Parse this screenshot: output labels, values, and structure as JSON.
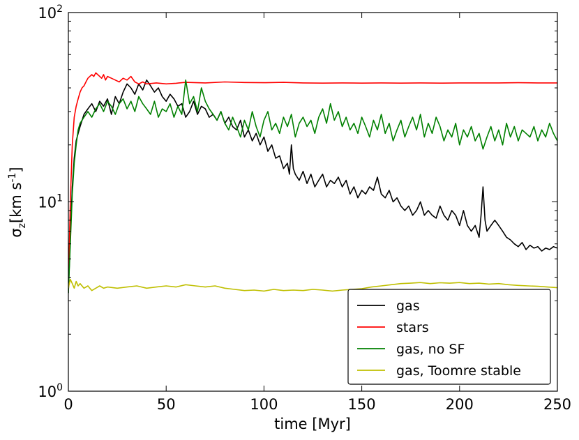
{
  "chart_data": {
    "type": "line",
    "xlabel": "time [Myr]",
    "ylabel": "σ_z [km s^-1]",
    "ylabel_parts": {
      "sigma": "σ",
      "sub": "z",
      "unit_open": "[km s",
      "sup": "-1",
      "unit_close": "]"
    },
    "xlim": [
      0,
      250
    ],
    "ylim": [
      1,
      100
    ],
    "y_scale": "log",
    "x_ticks": [
      {
        "value": 0,
        "label": "0"
      },
      {
        "value": 50,
        "label": "50"
      },
      {
        "value": 100,
        "label": "100"
      },
      {
        "value": 150,
        "label": "150"
      },
      {
        "value": 200,
        "label": "200"
      },
      {
        "value": 250,
        "label": "250"
      }
    ],
    "y_ticks": [
      {
        "value": 1,
        "base": "10",
        "exp": "0"
      },
      {
        "value": 10,
        "base": "10",
        "exp": "1"
      },
      {
        "value": 100,
        "base": "10",
        "exp": "2"
      }
    ],
    "grid": false,
    "legend_position": "bottom-right",
    "series": [
      {
        "name": "gas",
        "color": "#000000",
        "x": [
          0,
          1,
          2,
          3,
          4,
          5,
          6,
          8,
          10,
          12,
          14,
          16,
          18,
          20,
          22,
          24,
          26,
          28,
          30,
          32,
          34,
          36,
          38,
          40,
          42,
          44,
          46,
          48,
          50,
          52,
          54,
          56,
          58,
          60,
          62,
          64,
          66,
          68,
          70,
          72,
          74,
          76,
          78,
          80,
          82,
          84,
          86,
          88,
          90,
          92,
          94,
          96,
          98,
          100,
          102,
          104,
          106,
          108,
          110,
          112,
          113,
          114,
          115,
          116,
          118,
          120,
          122,
          124,
          126,
          128,
          130,
          132,
          134,
          136,
          138,
          140,
          142,
          144,
          146,
          148,
          150,
          152,
          154,
          156,
          158,
          160,
          162,
          164,
          166,
          168,
          170,
          172,
          174,
          176,
          178,
          180,
          182,
          184,
          186,
          188,
          190,
          192,
          194,
          196,
          198,
          200,
          202,
          204,
          206,
          208,
          210,
          211,
          212,
          213,
          214,
          216,
          218,
          220,
          222,
          224,
          226,
          228,
          230,
          232,
          234,
          236,
          238,
          240,
          242,
          244,
          246,
          248,
          250
        ],
        "y": [
          3.3,
          6.5,
          12,
          17,
          21,
          23,
          25,
          29,
          31,
          33,
          30,
          34,
          32,
          35,
          29,
          36,
          33,
          38,
          42,
          40,
          37,
          42,
          39,
          44,
          41,
          38,
          40,
          36,
          34,
          37,
          35,
          32,
          33,
          28,
          30,
          34,
          29,
          32,
          31,
          28,
          29,
          27,
          30,
          26,
          28,
          25,
          24,
          27,
          22,
          24,
          21,
          23,
          20,
          22,
          18.5,
          20,
          17,
          17.5,
          15,
          16,
          14,
          20,
          15,
          14,
          13,
          14.5,
          12.5,
          14,
          12,
          13,
          14,
          12,
          13,
          12.5,
          13.5,
          12,
          13,
          11,
          12,
          10.5,
          11.5,
          11,
          12,
          11.5,
          13.5,
          11,
          10.5,
          11.5,
          10,
          10.5,
          9.5,
          9,
          9.5,
          8.5,
          9,
          10,
          8.5,
          9,
          8.5,
          8.2,
          9.5,
          8.5,
          8,
          9,
          8.5,
          7.5,
          9,
          7.5,
          7,
          7.5,
          6.5,
          8.5,
          12,
          8,
          7,
          7.5,
          8,
          7.5,
          7,
          6.5,
          6.3,
          6,
          5.8,
          6.1,
          5.6,
          5.9,
          5.7,
          5.8,
          5.5,
          5.7,
          5.6,
          5.8,
          5.7
        ]
      },
      {
        "name": "stars",
        "color": "#ff0000",
        "x": [
          0,
          1,
          2,
          3,
          4,
          5,
          6,
          7,
          8,
          9,
          10,
          11,
          12,
          13,
          14,
          15,
          16,
          17,
          18,
          19,
          20,
          22,
          24,
          26,
          28,
          30,
          32,
          34,
          36,
          38,
          40,
          45,
          50,
          55,
          60,
          70,
          80,
          90,
          100,
          110,
          120,
          130,
          140,
          150,
          160,
          170,
          180,
          190,
          200,
          210,
          220,
          230,
          240,
          250
        ],
        "y": [
          3.5,
          10,
          20,
          28,
          32,
          35,
          38,
          40,
          41,
          43,
          45,
          46,
          47,
          46,
          48,
          47,
          46,
          45,
          47,
          44,
          46,
          45,
          44,
          43,
          45,
          44,
          46,
          43,
          42,
          43,
          42,
          42.5,
          42,
          42.3,
          42.8,
          42.5,
          43,
          42.7,
          42.6,
          42.8,
          42.5,
          42.4,
          42.5,
          42.4,
          42.5,
          42.4,
          42.5,
          42.4,
          42.5,
          42.5,
          42.5,
          42.6,
          42.5,
          42.5
        ]
      },
      {
        "name": "gas, no SF",
        "color": "#008000",
        "x": [
          0,
          1,
          2,
          3,
          4,
          5,
          6,
          8,
          10,
          12,
          14,
          16,
          18,
          20,
          22,
          24,
          26,
          28,
          30,
          32,
          34,
          36,
          38,
          40,
          42,
          44,
          46,
          48,
          50,
          52,
          54,
          56,
          58,
          60,
          62,
          64,
          66,
          68,
          70,
          72,
          74,
          76,
          78,
          80,
          82,
          84,
          86,
          88,
          90,
          92,
          94,
          96,
          98,
          100,
          102,
          104,
          106,
          108,
          110,
          112,
          114,
          116,
          118,
          120,
          122,
          124,
          126,
          128,
          130,
          132,
          134,
          136,
          138,
          140,
          142,
          144,
          146,
          148,
          150,
          152,
          154,
          156,
          158,
          160,
          162,
          164,
          166,
          168,
          170,
          172,
          174,
          176,
          178,
          180,
          182,
          184,
          186,
          188,
          190,
          192,
          194,
          196,
          198,
          200,
          202,
          204,
          206,
          208,
          210,
          212,
          214,
          216,
          218,
          220,
          222,
          224,
          226,
          228,
          230,
          232,
          234,
          236,
          238,
          240,
          242,
          244,
          246,
          248,
          250
        ],
        "y": [
          3.3,
          6,
          11,
          16,
          20,
          24,
          26,
          28,
          30,
          28,
          31,
          33,
          30,
          34,
          32,
          29,
          33,
          35,
          31,
          34,
          30,
          36,
          33,
          31,
          29,
          34,
          28,
          31,
          30,
          33,
          28,
          32,
          29,
          44,
          33,
          36,
          30,
          40,
          34,
          31,
          29,
          27,
          30,
          26,
          24,
          28,
          25,
          22,
          27,
          24,
          30,
          25,
          22,
          27,
          30,
          24,
          26,
          23,
          28,
          25,
          29,
          22,
          26,
          28,
          25,
          27,
          23,
          28,
          31,
          26,
          33,
          27,
          30,
          25,
          28,
          24,
          26,
          23,
          28,
          25,
          22,
          27,
          24,
          29,
          23,
          26,
          21,
          24,
          27,
          22,
          25,
          28,
          24,
          29,
          22,
          26,
          23,
          28,
          25,
          21,
          24,
          22,
          26,
          20,
          24,
          22,
          25,
          21,
          23,
          19,
          22,
          25,
          21,
          24,
          20,
          26,
          22,
          25,
          21,
          24,
          23,
          22,
          25,
          21,
          24,
          22,
          26,
          23,
          21
        ]
      },
      {
        "name": "gas, Toomre stable",
        "color": "#bfbf00",
        "x": [
          0,
          1,
          2,
          3,
          4,
          5,
          6,
          8,
          10,
          12,
          14,
          16,
          18,
          20,
          25,
          30,
          35,
          40,
          45,
          50,
          55,
          60,
          65,
          70,
          75,
          80,
          85,
          90,
          95,
          100,
          105,
          110,
          115,
          120,
          125,
          130,
          135,
          140,
          145,
          150,
          155,
          160,
          165,
          170,
          175,
          180,
          185,
          190,
          195,
          200,
          205,
          210,
          215,
          220,
          225,
          230,
          235,
          240,
          245,
          250
        ],
        "y": [
          3.5,
          3.9,
          3.7,
          3.5,
          3.8,
          3.6,
          3.7,
          3.5,
          3.6,
          3.4,
          3.5,
          3.6,
          3.5,
          3.55,
          3.5,
          3.55,
          3.6,
          3.5,
          3.55,
          3.6,
          3.55,
          3.65,
          3.6,
          3.55,
          3.6,
          3.5,
          3.45,
          3.4,
          3.42,
          3.38,
          3.45,
          3.4,
          3.42,
          3.4,
          3.45,
          3.42,
          3.38,
          3.42,
          3.45,
          3.48,
          3.55,
          3.6,
          3.65,
          3.7,
          3.72,
          3.75,
          3.7,
          3.74,
          3.72,
          3.75,
          3.7,
          3.72,
          3.68,
          3.7,
          3.65,
          3.62,
          3.6,
          3.58,
          3.55,
          3.52
        ]
      }
    ]
  }
}
